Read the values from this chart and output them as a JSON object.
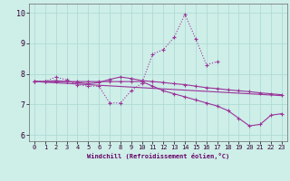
{
  "xlabel": "Windchill (Refroidissement éolien,°C)",
  "background_color": "#ceeee8",
  "grid_color": "#aad8d2",
  "line_color": "#993399",
  "x_values": [
    0,
    1,
    2,
    3,
    4,
    5,
    6,
    7,
    8,
    9,
    10,
    11,
    12,
    13,
    14,
    15,
    16,
    17,
    18,
    19,
    20,
    21,
    22,
    23
  ],
  "series1": [
    7.75,
    7.75,
    7.9,
    7.8,
    7.65,
    7.6,
    7.6,
    7.05,
    7.05,
    7.45,
    7.7,
    8.65,
    8.8,
    9.2,
    9.95,
    9.15,
    8.3,
    8.4,
    null,
    null,
    null,
    null,
    null,
    null
  ],
  "series2": [
    7.75,
    7.75,
    7.78,
    7.75,
    7.72,
    7.68,
    7.72,
    7.82,
    7.9,
    7.85,
    7.78,
    7.75,
    7.72,
    7.68,
    7.65,
    7.6,
    7.55,
    7.52,
    7.48,
    7.45,
    7.42,
    7.38,
    7.35,
    7.32
  ],
  "series3": [
    7.75,
    7.73,
    7.71,
    7.69,
    7.67,
    7.65,
    7.63,
    7.61,
    7.59,
    7.57,
    7.55,
    7.53,
    7.51,
    7.49,
    7.47,
    7.45,
    7.43,
    7.41,
    7.39,
    7.37,
    7.35,
    7.33,
    7.31,
    7.29
  ],
  "series4": [
    7.75,
    7.75,
    7.75,
    7.75,
    7.75,
    7.75,
    7.75,
    7.75,
    7.75,
    7.75,
    7.75,
    7.6,
    7.45,
    7.35,
    7.25,
    7.15,
    7.05,
    6.95,
    6.8,
    6.55,
    6.3,
    6.35,
    6.65,
    6.7
  ],
  "ylim": [
    5.8,
    10.3
  ],
  "xlim": [
    -0.5,
    23.5
  ],
  "yticks": [
    6,
    7,
    8,
    9,
    10
  ],
  "xticks": [
    0,
    1,
    2,
    3,
    4,
    5,
    6,
    7,
    8,
    9,
    10,
    11,
    12,
    13,
    14,
    15,
    16,
    17,
    18,
    19,
    20,
    21,
    22,
    23
  ]
}
